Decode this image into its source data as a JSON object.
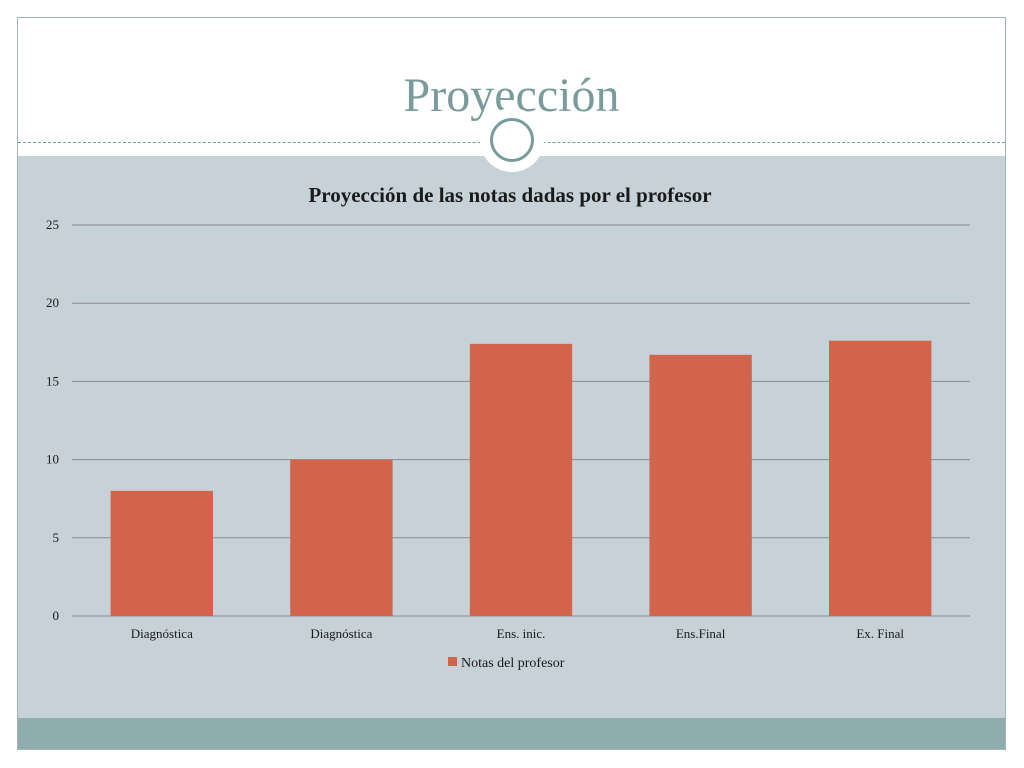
{
  "slide": {
    "title": "Proyección"
  },
  "colors": {
    "bar": "#d2644b",
    "background": "#c6d1d8",
    "accent": "#7a9b9b",
    "grid": "#8c8c8c"
  },
  "chart_data": {
    "type": "bar",
    "title": "Proyección de las notas dadas por el profesor",
    "categories": [
      "Diagnóstica",
      "Diagnóstica",
      "Ens. inic.",
      "Ens.Final",
      "Ex. Final"
    ],
    "series": [
      {
        "name": "Notas del profesor",
        "values": [
          8,
          10,
          17.4,
          16.7,
          17.6
        ]
      }
    ],
    "ylim": [
      0,
      25
    ],
    "yticks": [
      0,
      5,
      10,
      15,
      20,
      25
    ],
    "xlabel": "",
    "ylabel": "",
    "grid": true,
    "legend": "bottom"
  }
}
